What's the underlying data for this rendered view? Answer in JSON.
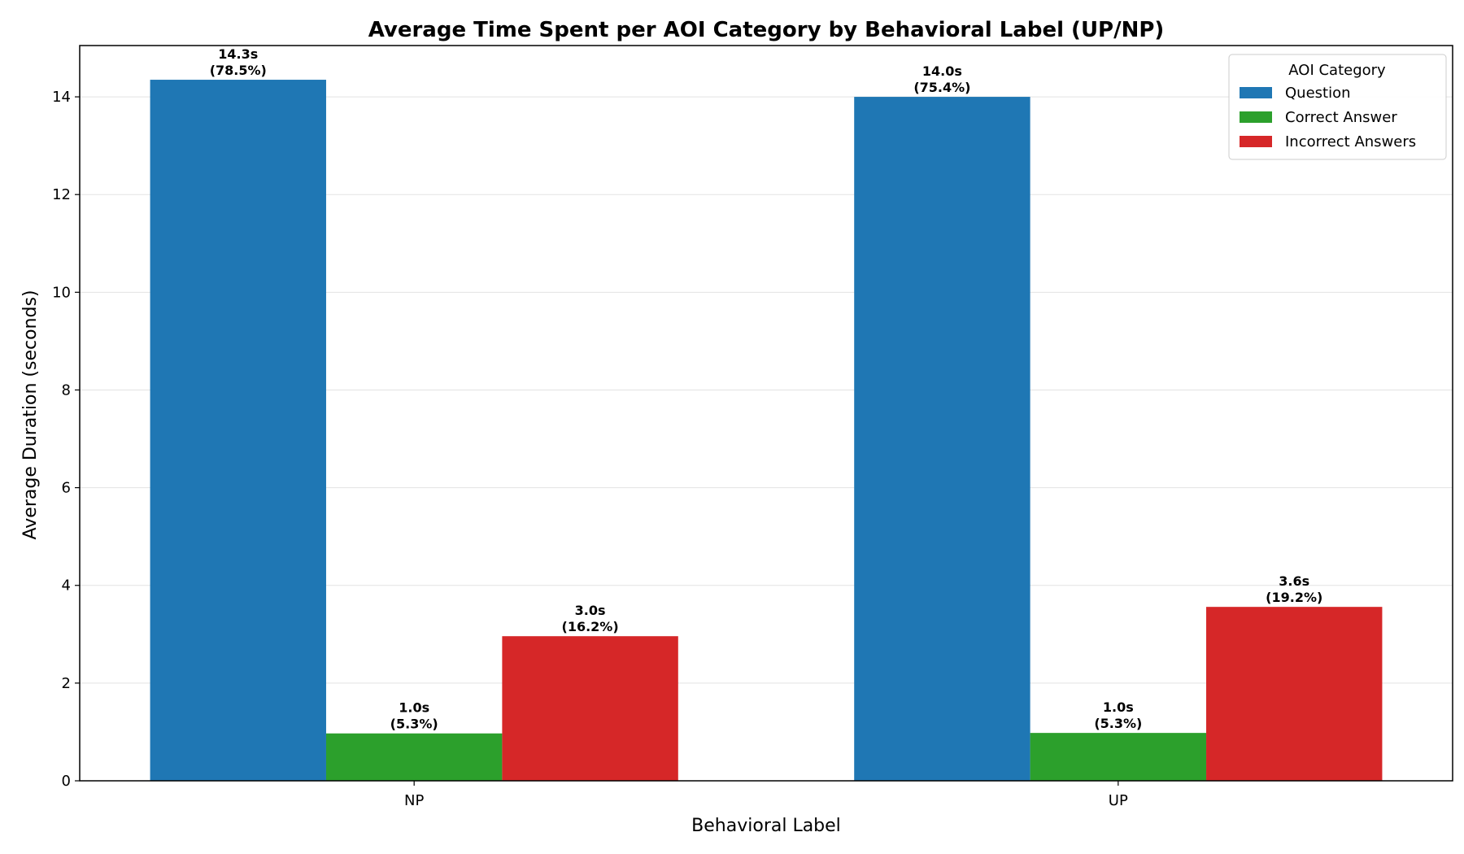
{
  "chart_data": {
    "type": "bar",
    "title": "Average Time Spent per AOI Category by Behavioral Label (UP/NP)",
    "xlabel": "Behavioral Label",
    "ylabel": "Average Duration (seconds)",
    "categories": [
      "NP",
      "UP"
    ],
    "ylim": [
      0,
      15.05
    ],
    "yticks": [
      0,
      2,
      4,
      6,
      8,
      10,
      12,
      14
    ],
    "grid": "y-horizontal",
    "legend": {
      "title": "AOI Category",
      "placement": "top-right"
    },
    "series": [
      {
        "name": "Question",
        "color": "#1f77b4",
        "values": [
          14.35,
          14.0
        ],
        "labels": [
          "14.3s",
          "14.0s"
        ],
        "percent_labels": [
          "(78.5%)",
          "(75.4%)"
        ]
      },
      {
        "name": "Correct Answer",
        "color": "#2ca02c",
        "values": [
          0.97,
          0.98
        ],
        "labels": [
          "1.0s",
          "1.0s"
        ],
        "percent_labels": [
          "(5.3%)",
          "(5.3%)"
        ]
      },
      {
        "name": "Incorrect Answers",
        "color": "#d62728",
        "values": [
          2.96,
          3.56
        ],
        "labels": [
          "3.0s",
          "3.6s"
        ],
        "percent_labels": [
          "(16.2%)",
          "(19.2%)"
        ]
      }
    ]
  }
}
